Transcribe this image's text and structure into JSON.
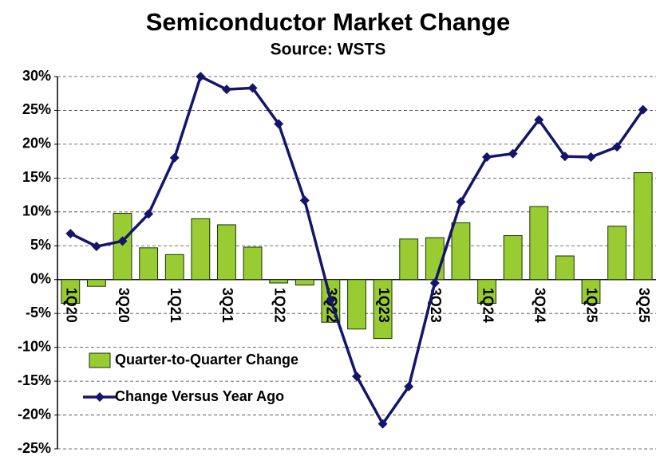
{
  "chart_data": {
    "type": "bar+line",
    "title": "Semiconductor Market Change",
    "subtitle": "Source: WSTS",
    "categories": [
      "1Q20",
      null,
      "3Q20",
      null,
      "1Q21",
      null,
      "3Q21",
      null,
      "1Q22",
      null,
      "3Q22",
      null,
      "1Q23",
      null,
      "3Q23",
      null,
      "1Q24",
      null,
      "3Q24",
      null,
      "1Q25",
      null,
      "3Q25"
    ],
    "series": [
      {
        "name": "Quarter-to-Quarter Change",
        "type": "bar",
        "color": "#99cc33",
        "values": [
          -3.5,
          -1.0,
          9.8,
          4.7,
          3.7,
          9.0,
          8.1,
          4.8,
          -0.5,
          -0.8,
          -6.3,
          -7.3,
          -8.7,
          6.0,
          6.2,
          8.4,
          -3.5,
          6.5,
          10.8,
          3.5,
          -3.5,
          7.9,
          15.8
        ]
      },
      {
        "name": "Change Versus Year Ago",
        "type": "line",
        "color": "#14146b",
        "values": [
          6.8,
          4.9,
          5.7,
          9.7,
          18.0,
          30.0,
          28.1,
          28.3,
          23.0,
          11.7,
          -3.0,
          -14.3,
          -21.3,
          -15.8,
          -0.5,
          11.5,
          18.1,
          18.6,
          23.6,
          18.2,
          18.1,
          19.6,
          25.1
        ]
      }
    ],
    "ylim": [
      -25,
      30
    ],
    "yticks": [
      {
        "value": -25,
        "label": "-25%"
      },
      {
        "value": -20,
        "label": "-20%"
      },
      {
        "value": -15,
        "label": "-15%"
      },
      {
        "value": -10,
        "label": "-10%"
      },
      {
        "value": -5,
        "label": "-5%"
      },
      {
        "value": 0,
        "label": "0%"
      },
      {
        "value": 5,
        "label": "5%"
      },
      {
        "value": 10,
        "label": "10%"
      },
      {
        "value": 15,
        "label": "15%"
      },
      {
        "value": 20,
        "label": "20%"
      },
      {
        "value": 25,
        "label": "25%"
      },
      {
        "value": 30,
        "label": "30%"
      }
    ],
    "grid": true,
    "legend": "lower-left"
  }
}
